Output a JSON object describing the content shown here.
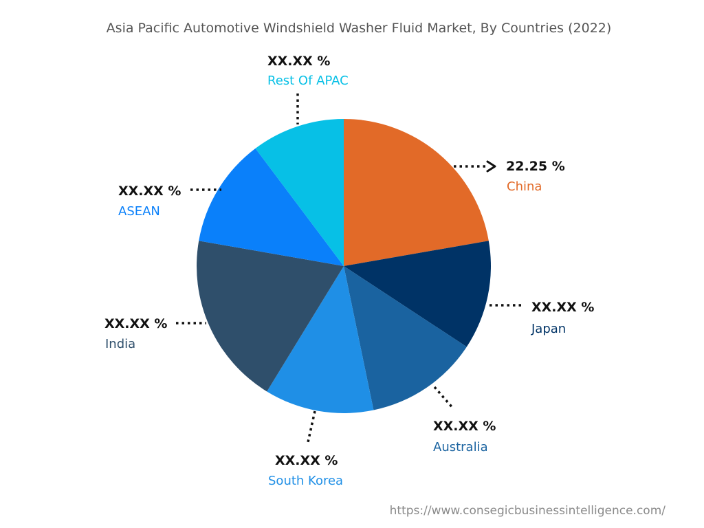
{
  "chart_data": {
    "type": "pie",
    "title": "Asia Pacific Automotive Windshield Washer Fluid Market, By Countries (2022)",
    "slices": [
      {
        "name": "China",
        "value": 22.25,
        "value_label": "22.25 %",
        "color": "#E26A28"
      },
      {
        "name": "Japan",
        "value": 12.0,
        "value_label": "XX.XX %",
        "color": "#003366"
      },
      {
        "name": "Australia",
        "value": 12.5,
        "value_label": "XX.XX %",
        "color": "#1A63A0"
      },
      {
        "name": "South Korea",
        "value": 12.0,
        "value_label": "XX.XX %",
        "color": "#1F8FE6"
      },
      {
        "name": "India",
        "value": 19.0,
        "value_label": "XX.XX %",
        "color": "#2F4F6B"
      },
      {
        "name": "ASEAN",
        "value": 12.0,
        "value_label": "XX.XX %",
        "color": "#0A80FA"
      },
      {
        "name": "Rest Of APAC",
        "value": 10.25,
        "value_label": "XX.XX %",
        "color": "#07C0E6"
      }
    ]
  },
  "source": "https://www.consegicbusinessintelligence.com/"
}
